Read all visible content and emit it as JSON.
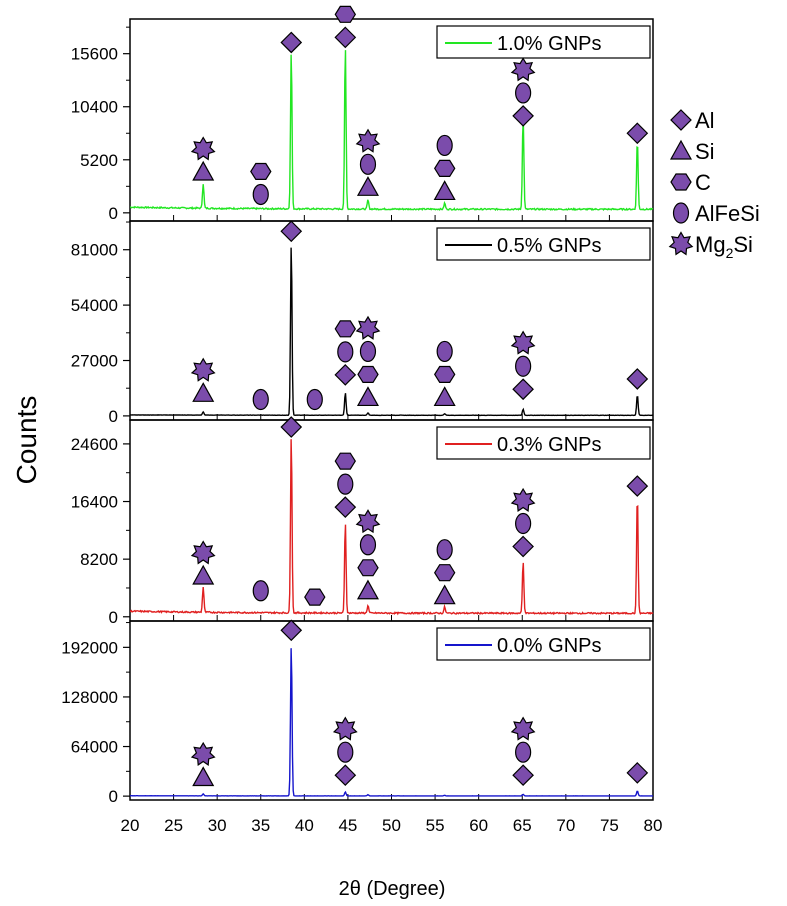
{
  "chart_data": {
    "type": "line",
    "xlabel": "2θ (Degree)",
    "ylabel": "Counts",
    "xlim": [
      20,
      80
    ],
    "x_ticks": [
      20,
      25,
      30,
      35,
      40,
      45,
      50,
      55,
      60,
      65,
      70,
      75,
      80
    ],
    "marker_key": [
      {
        "shape": "diamond",
        "label": "Al"
      },
      {
        "shape": "triangle",
        "label": "Si"
      },
      {
        "shape": "hexagon",
        "label": "C"
      },
      {
        "shape": "ellipse",
        "label": "AlFeSi"
      },
      {
        "shape": "star",
        "label": "Mg",
        "subscript": "2",
        "suffix": "Si"
      }
    ],
    "marker_color": "#7b4cab",
    "series": [
      {
        "name": "1.0% GNPs",
        "color": "#22e622",
        "ylim": [
          -800,
          19000
        ],
        "yticks": [
          0,
          5200,
          10400,
          15600
        ],
        "baseline": 350,
        "peaks": [
          [
            28.4,
            2400
          ],
          [
            38.5,
            15500
          ],
          [
            44.7,
            16000
          ],
          [
            47.3,
            900
          ],
          [
            56.1,
            600
          ],
          [
            65.1,
            9200
          ],
          [
            78.2,
            6800
          ]
        ],
        "annotations": [
          {
            "x": 28.4,
            "y": 4000,
            "stack": [
              "triangle",
              "star"
            ]
          },
          {
            "x": 35.0,
            "y": 1800,
            "stack": [
              "ellipse",
              "hexagon"
            ]
          },
          {
            "x": 38.5,
            "y": 16700,
            "stack": [
              "diamond"
            ]
          },
          {
            "x": 44.7,
            "y": 17200,
            "stack": [
              "diamond",
              "hexagon"
            ]
          },
          {
            "x": 47.3,
            "y": 2500,
            "stack": [
              "triangle",
              "ellipse",
              "star"
            ]
          },
          {
            "x": 56.1,
            "y": 2100,
            "stack": [
              "triangle",
              "hexagon",
              "ellipse"
            ]
          },
          {
            "x": 65.1,
            "y": 9500,
            "stack": [
              "diamond",
              "ellipse",
              "star"
            ]
          },
          {
            "x": 78.2,
            "y": 7800,
            "stack": [
              "diamond"
            ]
          }
        ]
      },
      {
        "name": "0.5% GNPs",
        "color": "#000000",
        "ylim": [
          -2000,
          95000
        ],
        "yticks": [
          0,
          27000,
          54000,
          81000
        ],
        "baseline": 300,
        "peaks": [
          [
            28.4,
            1500
          ],
          [
            38.5,
            84000
          ],
          [
            44.7,
            11000
          ],
          [
            47.3,
            1200
          ],
          [
            56.1,
            800
          ],
          [
            65.1,
            3000
          ],
          [
            78.2,
            10000
          ]
        ],
        "annotations": [
          {
            "x": 28.4,
            "y": 11000,
            "stack": [
              "triangle",
              "star"
            ]
          },
          {
            "x": 35.0,
            "y": 8000,
            "stack": [
              "ellipse"
            ]
          },
          {
            "x": 38.5,
            "y": 90000,
            "stack": [
              "diamond"
            ]
          },
          {
            "x": 41.2,
            "y": 8000,
            "stack": [
              "ellipse"
            ]
          },
          {
            "x": 44.7,
            "y": 20000,
            "stack": [
              "diamond",
              "ellipse",
              "hexagon"
            ]
          },
          {
            "x": 47.3,
            "y": 9000,
            "stack": [
              "triangle",
              "hexagon",
              "ellipse",
              "star"
            ]
          },
          {
            "x": 56.1,
            "y": 9000,
            "stack": [
              "triangle",
              "hexagon",
              "ellipse"
            ]
          },
          {
            "x": 65.1,
            "y": 13000,
            "stack": [
              "diamond",
              "ellipse",
              "star"
            ]
          },
          {
            "x": 78.2,
            "y": 18000,
            "stack": [
              "diamond"
            ]
          }
        ]
      },
      {
        "name": "0.3% GNPs",
        "color": "#e02020",
        "ylim": [
          -600,
          28000
        ],
        "yticks": [
          0,
          8200,
          16400,
          24600
        ],
        "baseline": 500,
        "peaks": [
          [
            28.4,
            3600
          ],
          [
            38.5,
            25500
          ],
          [
            44.7,
            13000
          ],
          [
            47.3,
            1100
          ],
          [
            56.1,
            900
          ],
          [
            65.1,
            7400
          ],
          [
            78.2,
            17000
          ]
        ],
        "annotations": [
          {
            "x": 28.4,
            "y": 5800,
            "stack": [
              "triangle",
              "star"
            ]
          },
          {
            "x": 35.0,
            "y": 3700,
            "stack": [
              "ellipse"
            ]
          },
          {
            "x": 38.5,
            "y": 27000,
            "stack": [
              "diamond"
            ]
          },
          {
            "x": 41.2,
            "y": 2800,
            "stack": [
              "hexagon"
            ]
          },
          {
            "x": 44.7,
            "y": 15600,
            "stack": [
              "diamond",
              "ellipse",
              "hexagon"
            ]
          },
          {
            "x": 47.3,
            "y": 3700,
            "stack": [
              "triangle",
              "hexagon",
              "ellipse",
              "star"
            ]
          },
          {
            "x": 56.1,
            "y": 3000,
            "stack": [
              "triangle",
              "hexagon",
              "ellipse"
            ]
          },
          {
            "x": 65.1,
            "y": 10000,
            "stack": [
              "diamond",
              "ellipse",
              "star"
            ]
          },
          {
            "x": 78.2,
            "y": 18600,
            "stack": [
              "diamond"
            ]
          }
        ]
      },
      {
        "name": "0.0% GNPs",
        "color": "#1515cc",
        "ylim": [
          -5000,
          226000
        ],
        "yticks": [
          0,
          64000,
          128000,
          192000
        ],
        "baseline": 300,
        "peaks": [
          [
            28.4,
            2500
          ],
          [
            38.5,
            196000
          ],
          [
            44.7,
            5000
          ],
          [
            47.3,
            1500
          ],
          [
            56.1,
            800
          ],
          [
            65.1,
            2000
          ],
          [
            78.2,
            6500
          ]
        ],
        "annotations": [
          {
            "x": 28.4,
            "y": 24000,
            "stack": [
              "triangle",
              "star"
            ]
          },
          {
            "x": 38.5,
            "y": 214000,
            "stack": [
              "diamond"
            ]
          },
          {
            "x": 44.7,
            "y": 27000,
            "stack": [
              "diamond",
              "ellipse",
              "star"
            ]
          },
          {
            "x": 65.1,
            "y": 27000,
            "stack": [
              "diamond",
              "ellipse",
              "star"
            ]
          },
          {
            "x": 78.2,
            "y": 30000,
            "stack": [
              "diamond"
            ]
          }
        ]
      }
    ]
  }
}
